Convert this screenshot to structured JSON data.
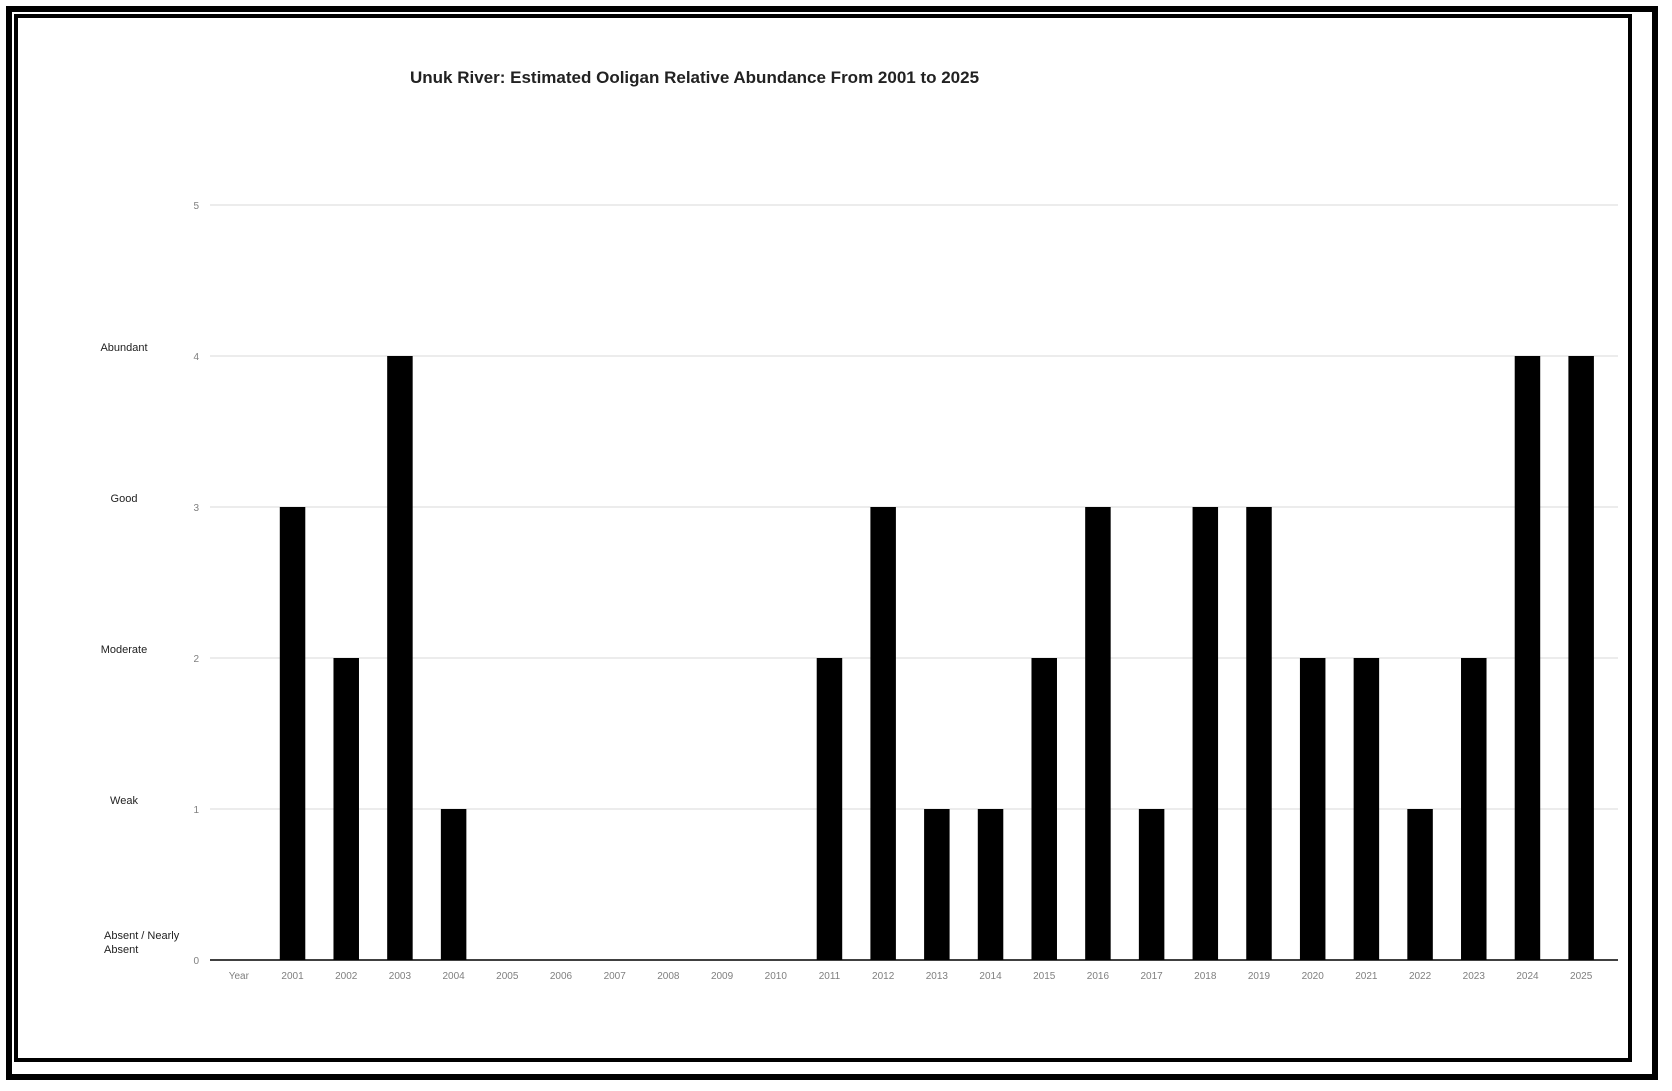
{
  "chart_data": {
    "type": "bar",
    "title": "Unuk River: Estimated Ooligan Relative Abundance From 2001 to 2025",
    "first_tick_label": "Year",
    "categories": [
      "2001",
      "2002",
      "2003",
      "2004",
      "2005",
      "2006",
      "2007",
      "2008",
      "2009",
      "2010",
      "2011",
      "2012",
      "2013",
      "2014",
      "2015",
      "2016",
      "2017",
      "2018",
      "2019",
      "2020",
      "2021",
      "2022",
      "2023",
      "2024",
      "2025"
    ],
    "values": [
      3,
      2,
      4,
      1,
      0,
      0,
      0,
      0,
      0,
      0,
      2,
      3,
      1,
      1,
      2,
      3,
      1,
      3,
      3,
      2,
      2,
      1,
      2,
      4,
      4
    ],
    "ylim": [
      0,
      5
    ],
    "yticks": [
      "0",
      "1",
      "2",
      "3",
      "4",
      "5"
    ],
    "category_labels": [
      "Absent / Nearly Absent",
      "Weak",
      "Moderate",
      "Good",
      "Abundant"
    ],
    "grid": true,
    "colors": {
      "bar": "#000000",
      "grid": "#d9d9d9",
      "tick_text": "#7f7f7f"
    }
  }
}
